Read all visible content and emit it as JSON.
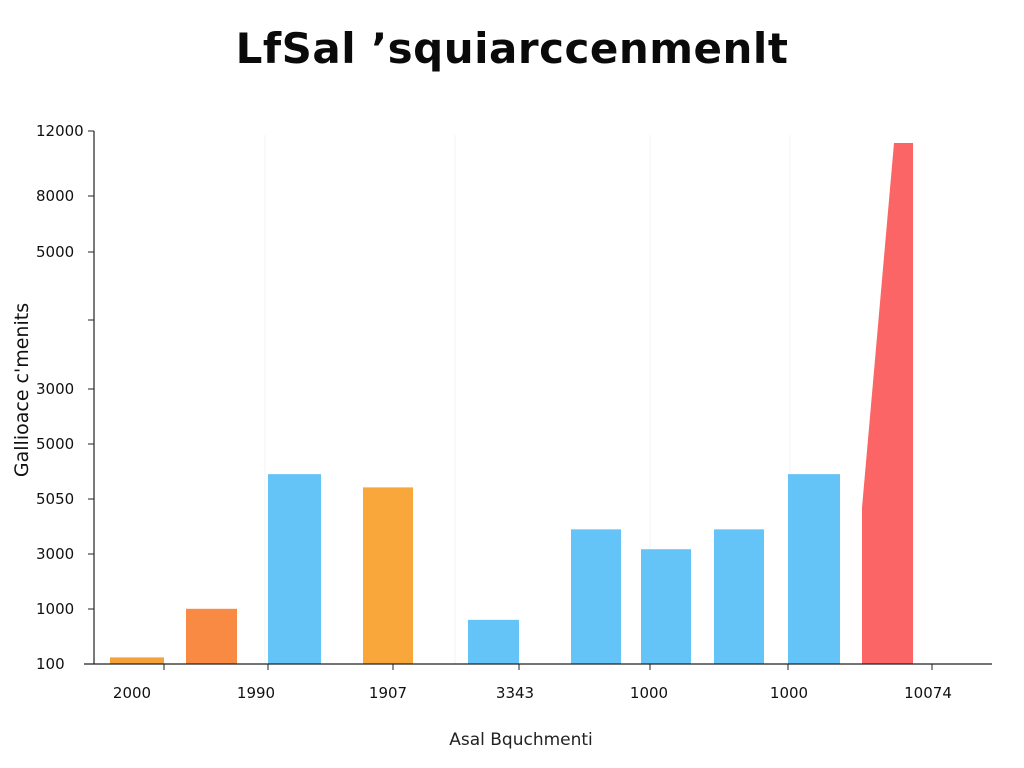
{
  "chart_data": {
    "type": "bar",
    "title": "LfSal ’squiarccenmenlt",
    "xlabel": "Asal Bquchmenti",
    "ylabel": "Gallioace c'menits",
    "y_tick_labels": [
      "12000",
      "8000",
      "5000",
      "",
      "3000",
      "5000",
      "5050",
      "3000",
      "1000",
      "100"
    ],
    "x_tick_labels": [
      "2000",
      "1990",
      "1907",
      "3343",
      "1000",
      "1000",
      "10074"
    ],
    "bars": [
      {
        "value": 150,
        "color": "#f5a13c"
      },
      {
        "value": 1250,
        "color": "#f98a44"
      },
      {
        "value": 4300,
        "color": "#64c4f7"
      },
      {
        "value": 4000,
        "color": "#f9a63a"
      },
      {
        "value": 1000,
        "color": "#64c4f7"
      },
      {
        "value": 3050,
        "color": "#64c4f7"
      },
      {
        "value": 2600,
        "color": "#64c4f7"
      },
      {
        "value": 3050,
        "color": "#64c4f7"
      },
      {
        "value": 4300,
        "color": "#64c4f7"
      },
      {
        "value": 11800,
        "color": "#fb6565"
      }
    ],
    "grid": true,
    "legend": "none"
  }
}
